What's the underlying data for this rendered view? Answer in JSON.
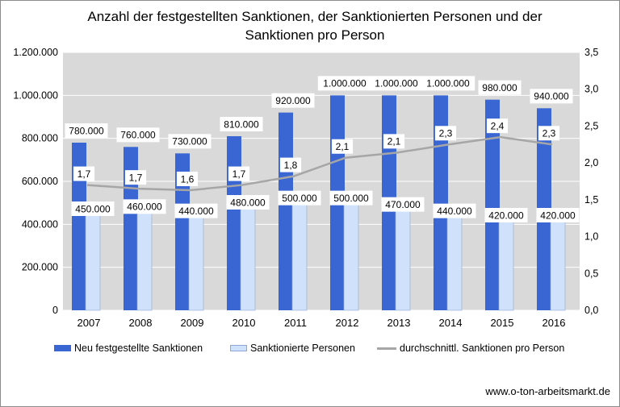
{
  "chart_data": {
    "type": "bar",
    "title": "Anzahl der festgestellten Sanktionen, der Sanktionierten Personen und der\nSanktionen pro Person",
    "categories": [
      "2007",
      "2008",
      "2009",
      "2010",
      "2011",
      "2012",
      "2013",
      "2014",
      "2015",
      "2016"
    ],
    "series": [
      {
        "name": "Neu festgestellte Sanktionen",
        "type": "bar",
        "axis": "left",
        "color": "#3a66d4",
        "values": [
          780000,
          760000,
          730000,
          810000,
          920000,
          1000000,
          1000000,
          1000000,
          980000,
          940000
        ],
        "labels": [
          "780.000",
          "760.000",
          "730.000",
          "810.000",
          "920.000",
          "1.000.000",
          "1.000.000",
          "1.000.000",
          "980.000",
          "940.000"
        ]
      },
      {
        "name": "Sanktionierte Personen",
        "type": "bar",
        "axis": "left",
        "color": "#cfe1fb",
        "values": [
          450000,
          460000,
          440000,
          480000,
          500000,
          500000,
          470000,
          440000,
          420000,
          420000
        ],
        "labels": [
          "450.000",
          "460.000",
          "440.000",
          "480.000",
          "500.000",
          "500.000",
          "470.000",
          "440.000",
          "420.000",
          "420.000"
        ]
      },
      {
        "name": "durchschnittl. Sanktionen pro Person",
        "type": "line",
        "axis": "right",
        "color": "#a6a6a6",
        "values": [
          1.7,
          1.65,
          1.63,
          1.7,
          1.82,
          2.07,
          2.14,
          2.25,
          2.35,
          2.25
        ],
        "labels": [
          "1,7",
          "1,7",
          "1,6",
          "1,7",
          "1,8",
          "2,1",
          "2,1",
          "2,3",
          "2,4",
          "2,3"
        ]
      }
    ],
    "y_left": {
      "min": 0,
      "max": 1200000,
      "ticks": [
        0,
        200000,
        400000,
        600000,
        800000,
        1000000,
        1200000
      ],
      "tick_labels": [
        "0",
        "200.000",
        "400.000",
        "600.000",
        "800.000",
        "1.000.000",
        "1.200.000"
      ]
    },
    "y_right": {
      "min": 0,
      "max": 3.5,
      "ticks": [
        0,
        0.5,
        1,
        1.5,
        2,
        2.5,
        3,
        3.5
      ],
      "tick_labels": [
        "0,0",
        "0,5",
        "1,0",
        "1,5",
        "2,0",
        "2,5",
        "3,0",
        "3,5"
      ]
    },
    "grid": true,
    "plot_background": "#d9d9d9",
    "legend_position": "bottom"
  },
  "legend": {
    "item1": "Neu festgestellte Sanktionen",
    "item2": "Sanktionierte Personen",
    "item3": "durchschnittl. Sanktionen pro Person"
  },
  "source": "www.o-ton-arbeitsmarkt.de"
}
